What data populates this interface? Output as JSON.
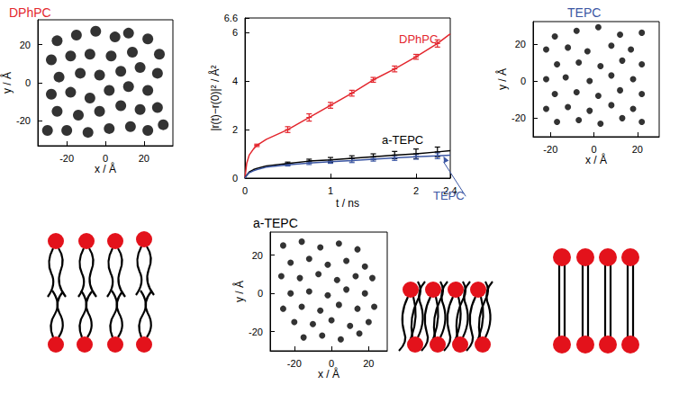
{
  "chart_data": [
    {
      "type": "scatter",
      "title": "DPhPC",
      "x_label": "x / Å",
      "y_label": "y / Å",
      "xlim": [
        -35,
        35
      ],
      "ylim": [
        -33,
        33
      ],
      "xticks": [
        -20,
        0,
        20
      ],
      "yticks": [
        -20,
        0,
        20
      ],
      "color": "#000000",
      "x": [
        -25,
        -15,
        -5,
        5,
        12,
        22,
        28,
        -28,
        -18,
        -8,
        3,
        14,
        -24,
        -13,
        -3,
        8,
        18,
        27,
        -28,
        -18,
        -8,
        2,
        12,
        22,
        -25,
        -14,
        -3,
        8,
        18,
        27,
        -20,
        -9,
        2,
        13,
        22,
        -30,
        30
      ],
      "values": [
        22,
        25,
        27,
        24,
        26,
        23,
        15,
        12,
        14,
        15,
        14,
        16,
        3,
        5,
        4,
        6,
        8,
        5,
        -6,
        -5,
        -8,
        -4,
        -2,
        -4,
        -15,
        -17,
        -15,
        -12,
        -14,
        -13,
        -25,
        -26,
        -24,
        -23,
        -25,
        -25,
        -22
      ]
    },
    {
      "type": "line",
      "x_label": "t / ns",
      "y_label": "|r(t)−r(0)|² / Å²",
      "xlim": [
        0,
        2.4
      ],
      "ylim": [
        0,
        6.6
      ],
      "xticks": [
        0,
        1,
        2
      ],
      "yticks": [
        0,
        2,
        4,
        6
      ],
      "x": [
        0,
        0.02,
        0.05,
        0.1,
        0.14,
        0.25,
        0.5,
        0.75,
        1,
        1.25,
        1.5,
        1.75,
        2,
        2.25,
        2.4
      ],
      "series": [
        {
          "name": "DPhPC",
          "color": "#e3262d",
          "values": [
            0,
            0.6,
            0.95,
            1.2,
            1.35,
            1.6,
            2.0,
            2.5,
            3.0,
            3.5,
            4.05,
            4.5,
            5.0,
            5.55,
            5.95
          ],
          "errors": [
            null,
            null,
            null,
            null,
            0.05,
            null,
            0.12,
            0.15,
            0.12,
            0.12,
            0.1,
            0.12,
            0.1,
            0.15,
            null
          ]
        },
        {
          "name": "a-TEPC",
          "color": "#000000",
          "values": [
            0,
            0.12,
            0.25,
            0.35,
            0.4,
            0.5,
            0.6,
            0.7,
            0.75,
            0.82,
            0.88,
            0.95,
            1.0,
            1.08,
            1.13
          ],
          "errors": [
            null,
            null,
            null,
            null,
            null,
            null,
            0.06,
            0.08,
            0.1,
            0.1,
            0.12,
            0.15,
            0.2,
            0.2,
            null
          ]
        },
        {
          "name": "TEPC",
          "color": "#3b56a3",
          "values": [
            0,
            0.1,
            0.22,
            0.3,
            0.35,
            0.45,
            0.55,
            0.62,
            0.68,
            0.72,
            0.78,
            0.83,
            0.88,
            0.92,
            0.95
          ],
          "errors": [
            null,
            null,
            null,
            null,
            null,
            null,
            0.05,
            0.06,
            0.07,
            0.08,
            0.08,
            0.1,
            0.1,
            0.12,
            null
          ]
        }
      ],
      "annotations": [
        {
          "text": "DPhPC",
          "x": 1.8,
          "y": 5.7,
          "color": "#e3262d"
        },
        {
          "text": "a-TEPC",
          "x": 1.6,
          "y": 1.55,
          "color": "#000000"
        },
        {
          "text": "TEPC",
          "x": 2.2,
          "y": -0.75,
          "color": "#3b56a3",
          "arrow_to": [
            2.32,
            0.9
          ]
        }
      ]
    },
    {
      "type": "scatter",
      "title": "TEPC",
      "x_label": "x / Å",
      "y_label": "y / Å",
      "xlim": [
        -28,
        30
      ],
      "ylim": [
        -30,
        32
      ],
      "xticks": [
        -20,
        0,
        20
      ],
      "yticks": [
        -20,
        0,
        20
      ],
      "color": "#000000",
      "x": [
        -18,
        -8,
        2,
        12,
        22,
        -22,
        -12,
        -3,
        8,
        17,
        -17,
        -7,
        3,
        13,
        22,
        -22,
        -13,
        -2,
        8,
        18,
        -18,
        -8,
        2,
        12,
        22,
        -22,
        -12,
        -2,
        8,
        18,
        -17,
        -7,
        3,
        13,
        22
      ],
      "values": [
        24,
        27,
        29,
        25,
        26,
        17,
        18,
        16,
        19,
        17,
        9,
        10,
        8,
        11,
        9,
        1,
        2,
        0,
        3,
        1,
        -7,
        -6,
        -8,
        -5,
        -7,
        -15,
        -14,
        -16,
        -13,
        -15,
        -22,
        -21,
        -23,
        -20,
        -22
      ]
    },
    {
      "type": "scatter",
      "title": "a-TEPC",
      "x_label": "x / Å",
      "y_label": "y / Å",
      "xlim": [
        -33,
        30
      ],
      "ylim": [
        -30,
        32
      ],
      "xticks": [
        -20,
        0,
        20
      ],
      "yticks": [
        -20,
        0,
        20
      ],
      "color": "#000000",
      "x": [
        -26,
        -16,
        -6,
        4,
        14,
        -22,
        -12,
        -2,
        8,
        18,
        -27,
        -17,
        -7,
        3,
        13,
        22,
        -22,
        -12,
        -2,
        8,
        18,
        -26,
        -16,
        -6,
        4,
        14,
        23,
        -20,
        -10,
        0,
        10,
        20,
        -15,
        -5,
        5,
        15
      ],
      "values": [
        25,
        27,
        24,
        26,
        23,
        16,
        18,
        15,
        17,
        14,
        9,
        8,
        10,
        7,
        9,
        8,
        0,
        1,
        -1,
        2,
        0,
        -8,
        -7,
        -9,
        -6,
        -8,
        -7,
        -15,
        -16,
        -14,
        -17,
        -15,
        -23,
        -22,
        -24,
        -21
      ]
    }
  ]
}
